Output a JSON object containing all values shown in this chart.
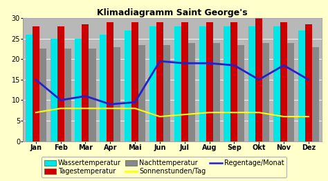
{
  "title": "Klimadiagramm Saint George's",
  "months": [
    "Jan",
    "Feb",
    "Mar",
    "Apr",
    "Mai",
    "Jun",
    "Jul",
    "Aug",
    "Sep",
    "Okt",
    "Nov",
    "Dez"
  ],
  "wassertemperatur": [
    26,
    25,
    25,
    26,
    27,
    28,
    28,
    28,
    28,
    28,
    28,
    27
  ],
  "tagestemperatur": [
    28,
    28,
    28.5,
    29,
    29,
    29,
    29,
    29,
    29,
    30,
    29,
    28.5
  ],
  "nachttemperatur": [
    22.5,
    22.5,
    22.5,
    23,
    23.5,
    23.5,
    24,
    24,
    23.5,
    24,
    24,
    23
  ],
  "sonnenstunden": [
    7,
    8,
    8,
    8,
    8,
    6,
    6.5,
    7,
    7,
    7,
    6,
    6
  ],
  "regentage": [
    15,
    10,
    11,
    9,
    9.5,
    19.5,
    19,
    19,
    18.5,
    15,
    18.5,
    15
  ],
  "bar_wasser_color": "#00e5e5",
  "bar_tages_color": "#cc0000",
  "bar_nacht_color": "#888888",
  "line_sonnen_color": "#ffff00",
  "line_regen_color": "#2222cc",
  "background_outer": "#ffffcc",
  "background_plot": "#b8b8b8",
  "ylim": [
    0,
    30
  ],
  "yticks": [
    0,
    5,
    10,
    15,
    20,
    25,
    30
  ],
  "title_fontsize": 9,
  "legend_fontsize": 7,
  "tick_fontsize": 7
}
